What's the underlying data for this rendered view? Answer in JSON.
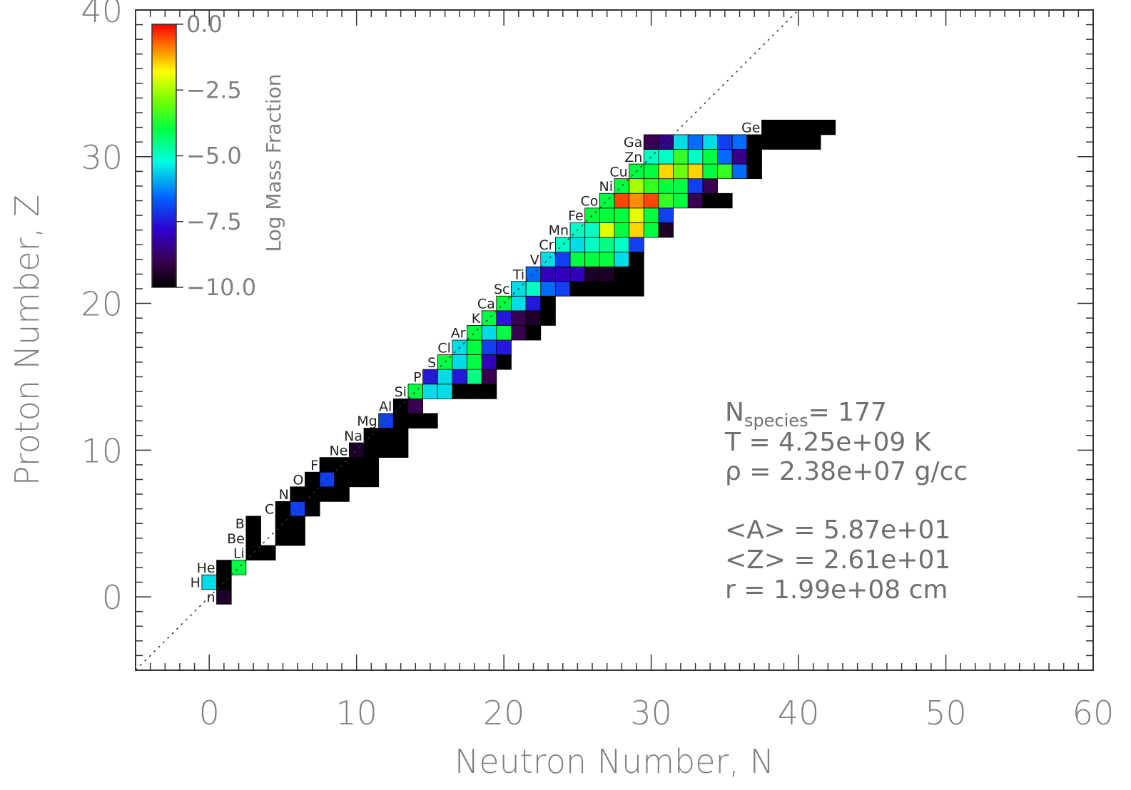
{
  "chart_data": {
    "type": "heatmap",
    "xlabel": "Neutron Number, N",
    "ylabel": "Proton Number, Z",
    "xlim": [
      -5,
      60
    ],
    "ylim": [
      -5,
      40
    ],
    "xticks": [
      "0",
      "10",
      "20",
      "30",
      "40",
      "50",
      "60"
    ],
    "yticks": [
      "0",
      "10",
      "20",
      "30",
      "40"
    ],
    "diagonal_line": "N = Z (dotted)",
    "colorbar": {
      "title": "Log Mass Fraction",
      "range": [
        -10.0,
        0.0
      ],
      "tick_labels": [
        "0.0",
        "−2.5",
        "−5.0",
        "−7.5",
        "−10.0"
      ],
      "colormap": "rainbow"
    },
    "element_labels": [
      {
        "symbol": "n",
        "Z": 0
      },
      {
        "symbol": "H",
        "Z": 1
      },
      {
        "symbol": "He",
        "Z": 2
      },
      {
        "symbol": "Li",
        "Z": 3
      },
      {
        "symbol": "Be",
        "Z": 4
      },
      {
        "symbol": "B",
        "Z": 5
      },
      {
        "symbol": "C",
        "Z": 6
      },
      {
        "symbol": "N",
        "Z": 7
      },
      {
        "symbol": "O",
        "Z": 8
      },
      {
        "symbol": "F",
        "Z": 9
      },
      {
        "symbol": "Ne",
        "Z": 10
      },
      {
        "symbol": "Na",
        "Z": 11
      },
      {
        "symbol": "Mg",
        "Z": 12
      },
      {
        "symbol": "Al",
        "Z": 13
      },
      {
        "symbol": "Si",
        "Z": 14
      },
      {
        "symbol": "P",
        "Z": 15
      },
      {
        "symbol": "S",
        "Z": 16
      },
      {
        "symbol": "Cl",
        "Z": 17
      },
      {
        "symbol": "Ar",
        "Z": 18
      },
      {
        "symbol": "K",
        "Z": 19
      },
      {
        "symbol": "Ca",
        "Z": 20
      },
      {
        "symbol": "Sc",
        "Z": 21
      },
      {
        "symbol": "Ti",
        "Z": 22
      },
      {
        "symbol": "V",
        "Z": 23
      },
      {
        "symbol": "Cr",
        "Z": 24
      },
      {
        "symbol": "Mn",
        "Z": 25
      },
      {
        "symbol": "Fe",
        "Z": 26
      },
      {
        "symbol": "Co",
        "Z": 27
      },
      {
        "symbol": "Ni",
        "Z": 28
      },
      {
        "symbol": "Cu",
        "Z": 29
      },
      {
        "symbol": "Zn",
        "Z": 30
      },
      {
        "symbol": "Ga",
        "Z": 31
      },
      {
        "symbol": "Ge",
        "Z": 32
      }
    ],
    "cells": [
      {
        "Z": 0,
        "N": [
          1
        ],
        "v": [
          -9.5
        ]
      },
      {
        "Z": 1,
        "N": [
          0,
          1
        ],
        "v": [
          -5.5,
          -11
        ]
      },
      {
        "Z": 2,
        "N": [
          1,
          2
        ],
        "v": [
          -11,
          -4.0
        ]
      },
      {
        "Z": 3,
        "N": [
          3,
          4
        ],
        "v": [
          -11,
          -11
        ]
      },
      {
        "Z": 4,
        "N": [
          3,
          5,
          6
        ],
        "v": [
          -11,
          -11,
          -11
        ]
      },
      {
        "Z": 5,
        "N": [
          3,
          5,
          6
        ],
        "v": [
          -11,
          -11,
          -11
        ]
      },
      {
        "Z": 6,
        "N": [
          5,
          6,
          7
        ],
        "v": [
          -11,
          -7.0,
          -11
        ]
      },
      {
        "Z": 7,
        "N": [
          6,
          7,
          8,
          9
        ],
        "v": [
          -11,
          -11,
          -11,
          -11
        ]
      },
      {
        "Z": 8,
        "N": [
          7,
          8,
          9,
          10,
          11
        ],
        "v": [
          -11,
          -7.0,
          -11,
          -11,
          -11
        ]
      },
      {
        "Z": 9,
        "N": [
          8,
          9,
          10,
          11
        ],
        "v": [
          -11,
          -11,
          -11,
          -11
        ]
      },
      {
        "Z": 10,
        "N": [
          10,
          11,
          12,
          13
        ],
        "v": [
          -9.5,
          -11,
          -11,
          -11
        ]
      },
      {
        "Z": 11,
        "N": [
          11,
          12,
          13
        ],
        "v": [
          -11,
          -11,
          -11
        ]
      },
      {
        "Z": 12,
        "N": [
          12,
          13,
          14,
          15
        ],
        "v": [
          -7.0,
          -11,
          -10,
          -11
        ]
      },
      {
        "Z": 13,
        "N": [
          13,
          14
        ],
        "v": [
          -11,
          -9.0
        ]
      },
      {
        "Z": 14,
        "N": [
          14,
          15,
          16,
          17,
          18,
          19
        ],
        "v": [
          -4.0,
          -5.5,
          -5.5,
          -10,
          -11,
          -11
        ]
      },
      {
        "Z": 15,
        "N": [
          15,
          16,
          17,
          18,
          19
        ],
        "v": [
          -7.5,
          -5.5,
          -7.5,
          -4.5,
          -9
        ]
      },
      {
        "Z": 16,
        "N": [
          16,
          17,
          18,
          19,
          20
        ],
        "v": [
          -4.0,
          -5.5,
          -4.0,
          -8.0,
          -11
        ]
      },
      {
        "Z": 17,
        "N": [
          17,
          18,
          19,
          20
        ],
        "v": [
          -5.5,
          -4.0,
          -7.0,
          -7.5
        ]
      },
      {
        "Z": 18,
        "N": [
          18,
          19,
          20,
          21,
          22
        ],
        "v": [
          -4.0,
          -5.5,
          -4.0,
          -9.0,
          -11
        ]
      },
      {
        "Z": 19,
        "N": [
          19,
          20,
          21,
          22,
          23
        ],
        "v": [
          -4.0,
          -7.5,
          -9.0,
          -9.5,
          -11
        ]
      },
      {
        "Z": 20,
        "N": [
          20,
          21,
          22,
          23
        ],
        "v": [
          -4.0,
          -5.5,
          -7.5,
          -11
        ]
      },
      {
        "Z": 21,
        "N": [
          21,
          22,
          23,
          24,
          25,
          26,
          27,
          28,
          29
        ],
        "v": [
          -5.5,
          -5.0,
          -6.5,
          -7.0,
          -11,
          -11,
          -11,
          -11,
          -11
        ]
      },
      {
        "Z": 22,
        "N": [
          22,
          23,
          24,
          25,
          26,
          27,
          28,
          29
        ],
        "v": [
          -6.5,
          -8.0,
          -8.0,
          -8.0,
          -9.5,
          -9.5,
          -11,
          -11
        ]
      },
      {
        "Z": 23,
        "N": [
          23,
          24,
          25,
          26,
          27,
          28,
          29
        ],
        "v": [
          -5.5,
          -7.0,
          -4.0,
          -4.0,
          -4.0,
          -5.5,
          -11
        ]
      },
      {
        "Z": 24,
        "N": [
          24,
          25,
          26,
          27,
          28,
          29
        ],
        "v": [
          -5.0,
          -5.5,
          -5.0,
          -4.5,
          -5.0,
          -7.0
        ]
      },
      {
        "Z": 25,
        "N": [
          25,
          26,
          27,
          28,
          29,
          30,
          31
        ],
        "v": [
          -5.0,
          -5.0,
          -2.0,
          -4.0,
          -1.5,
          -4.0,
          -9.5
        ]
      },
      {
        "Z": 26,
        "N": [
          26,
          27,
          28,
          29,
          30,
          31
        ],
        "v": [
          -4.0,
          -4.0,
          -4.0,
          -2.0,
          -4.0,
          -7.0
        ]
      },
      {
        "Z": 27,
        "N": [
          27,
          28,
          29,
          30,
          31,
          32,
          33,
          34,
          35
        ],
        "v": [
          -4.0,
          -0.5,
          -1.0,
          -0.5,
          -3.5,
          -4.0,
          -9.0,
          -11,
          -11
        ]
      },
      {
        "Z": 28,
        "N": [
          28,
          29,
          30,
          31,
          32,
          33,
          34
        ],
        "v": [
          -4.0,
          -2.5,
          -3.5,
          -4.0,
          -4.0,
          -7.0,
          -9.0
        ]
      },
      {
        "Z": 29,
        "N": [
          29,
          30,
          31,
          32,
          33,
          34,
          35,
          36,
          37
        ],
        "v": [
          -4.0,
          -4.0,
          -1.5,
          -3.0,
          -1.5,
          -4.0,
          -3.5,
          -6.5,
          -11
        ]
      },
      {
        "Z": 30,
        "N": [
          30,
          31,
          32,
          33,
          34,
          35,
          36,
          37
        ],
        "v": [
          -5.0,
          -5.0,
          -3.5,
          -5.0,
          -4.0,
          -6.5,
          -8.5,
          -11
        ]
      },
      {
        "Z": 31,
        "N": [
          30,
          31,
          32,
          33,
          34,
          35,
          36,
          37,
          38,
          39,
          40,
          41
        ],
        "v": [
          -9.0,
          -8.5,
          -5.5,
          -6.5,
          -5.5,
          -7.0,
          -6.5,
          -11,
          -11,
          -11,
          -11,
          -11
        ]
      },
      {
        "Z": 32,
        "N": [
          38,
          39,
          40,
          41,
          42
        ],
        "v": [
          -11,
          -11,
          -11,
          -11,
          -11
        ]
      }
    ],
    "annotations": [
      {
        "label": "N",
        "sub": "species",
        "eq": "= 177"
      },
      {
        "label": "T",
        "eq": "= 4.25e+09 K"
      },
      {
        "label": "ρ",
        "eq": "= 2.38e+07 g/cc"
      },
      {
        "label": "<A>",
        "eq": "= 5.87e+01"
      },
      {
        "label": "<Z>",
        "eq": "= 2.61e+01"
      },
      {
        "label": "r",
        "eq": "= 1.99e+08 cm"
      }
    ]
  }
}
